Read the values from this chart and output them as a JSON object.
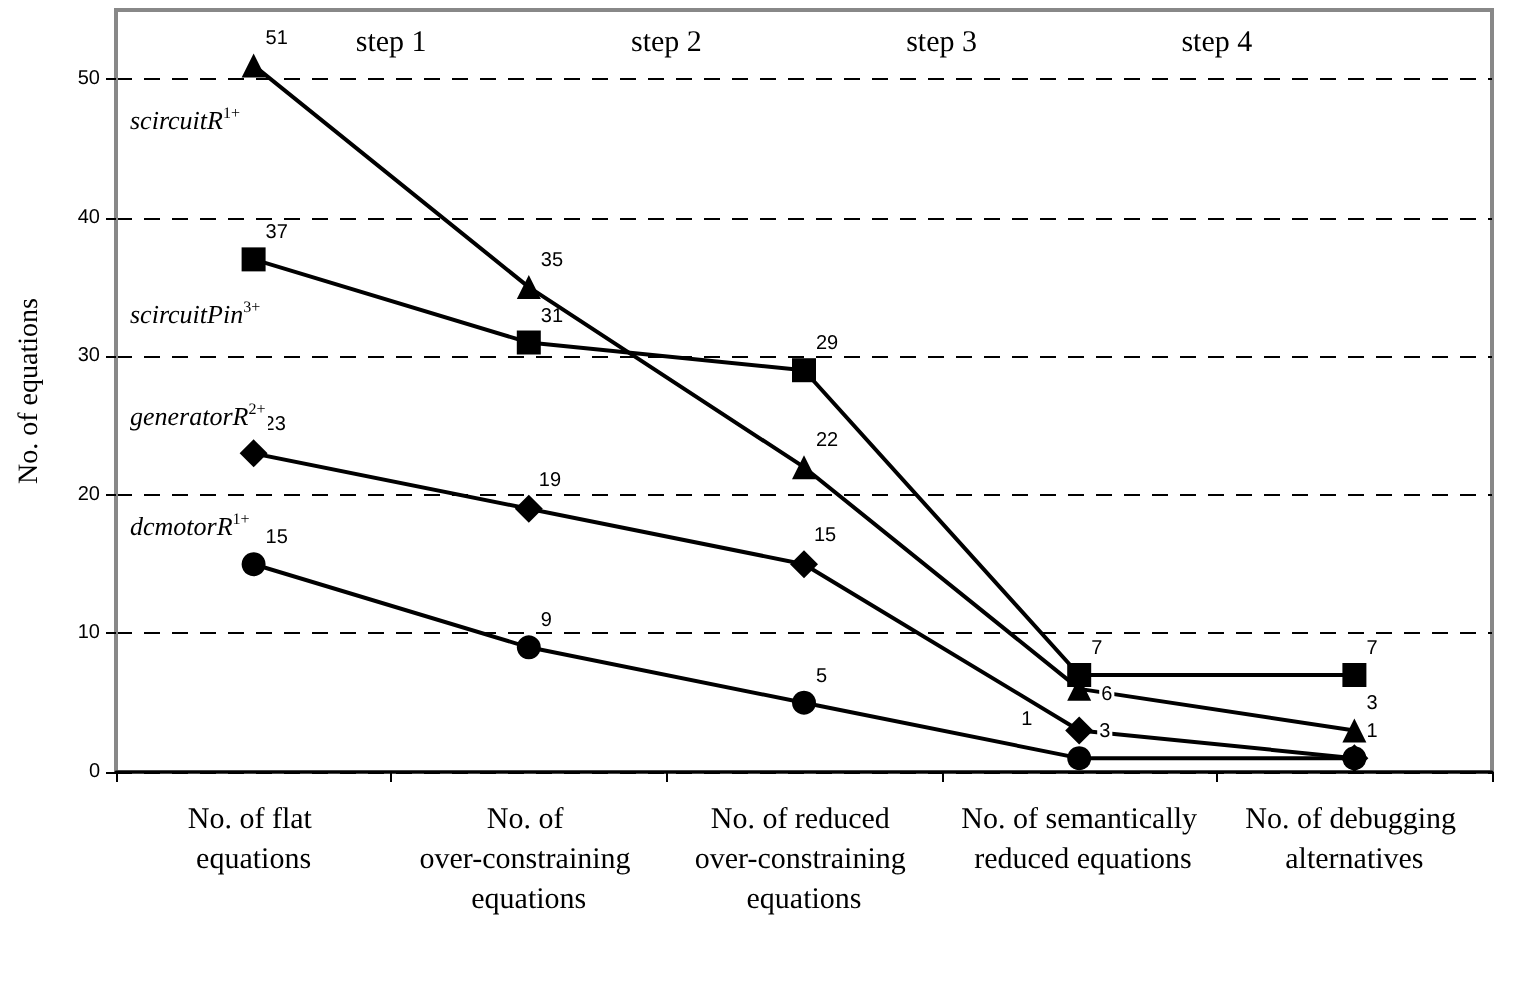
{
  "chart_data": {
    "type": "line",
    "ylabel": "No. of equations",
    "categories": [
      "No. of flat equations",
      "No. of over-constraining equations",
      "No. of reduced over-constraining equations",
      "No. of semantically reduced equations",
      "No. of debugging alternatives"
    ],
    "series": [
      {
        "name": "scircuitR$^{1+}$",
        "color": "#000000",
        "marker": "triangle",
        "values": [
          51,
          35,
          22,
          6,
          3
        ],
        "value_labels": [
          "51",
          "35",
          "22",
          "6",
          "3"
        ]
      },
      {
        "name": "scircuitPin$^{3+}$",
        "color": "#000000",
        "marker": "square",
        "values": [
          37,
          31,
          29,
          7,
          7
        ],
        "value_labels": [
          "37",
          "31",
          "29",
          "7",
          "7"
        ]
      },
      {
        "name": "generatorR$^{2+}$",
        "color": "#000000",
        "marker": "diamond",
        "values": [
          23,
          19,
          15,
          3,
          1
        ],
        "value_labels": [
          "23",
          "19",
          "15",
          "3",
          null
        ]
      },
      {
        "name": "dcmotorR$^{1+}$",
        "color": "#000000",
        "marker": "circle",
        "values": [
          15,
          9,
          5,
          1,
          1
        ],
        "value_labels": [
          "15",
          "9",
          "5",
          "1",
          "1"
        ]
      }
    ],
    "annotations": [
      "step 1",
      "step 2",
      "step 3",
      "step 4"
    ],
    "ylim": [
      0,
      55
    ],
    "yticks": [
      0,
      10,
      20,
      30,
      40,
      50
    ],
    "grid": "y",
    "legend": false,
    "line_style": "solid"
  }
}
